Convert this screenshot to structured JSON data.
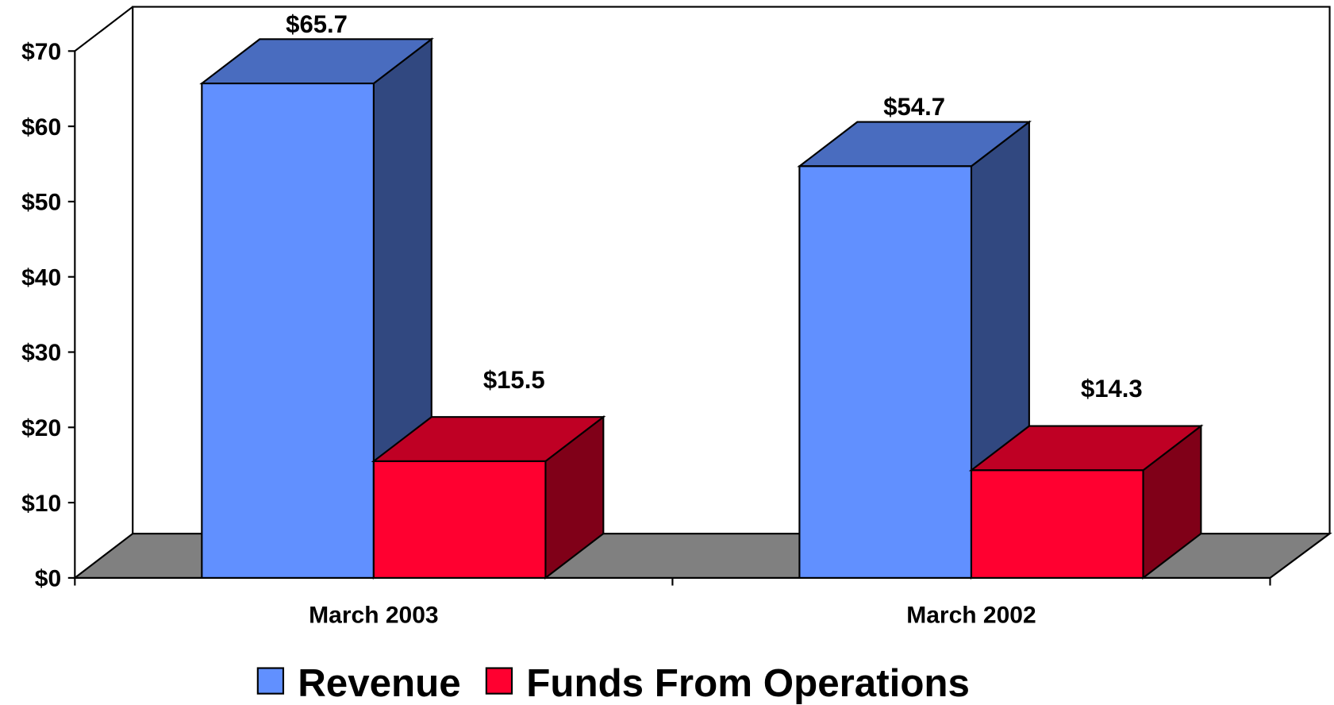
{
  "chart_data": {
    "type": "bar3d",
    "categories": [
      "March 2003",
      "March 2002"
    ],
    "series": [
      {
        "name": "Revenue",
        "color": "#6190ff",
        "values": [
          65.7,
          54.7
        ],
        "value_labels": [
          "$65.7",
          "$54.7"
        ]
      },
      {
        "name": "Funds From Operations",
        "color": "#ff0030",
        "values": [
          15.5,
          14.3
        ],
        "value_labels": [
          "$15.5",
          "$14.3"
        ]
      }
    ],
    "ylim": [
      0,
      70
    ],
    "yticks": [
      {
        "value": 0,
        "label": "$0"
      },
      {
        "value": 10,
        "label": "$10"
      },
      {
        "value": 20,
        "label": "$20"
      },
      {
        "value": 30,
        "label": "$30"
      },
      {
        "value": 40,
        "label": "$40"
      },
      {
        "value": 50,
        "label": "$50"
      },
      {
        "value": 60,
        "label": "$60"
      },
      {
        "value": 70,
        "label": "$70"
      }
    ],
    "legend": "bottom"
  }
}
